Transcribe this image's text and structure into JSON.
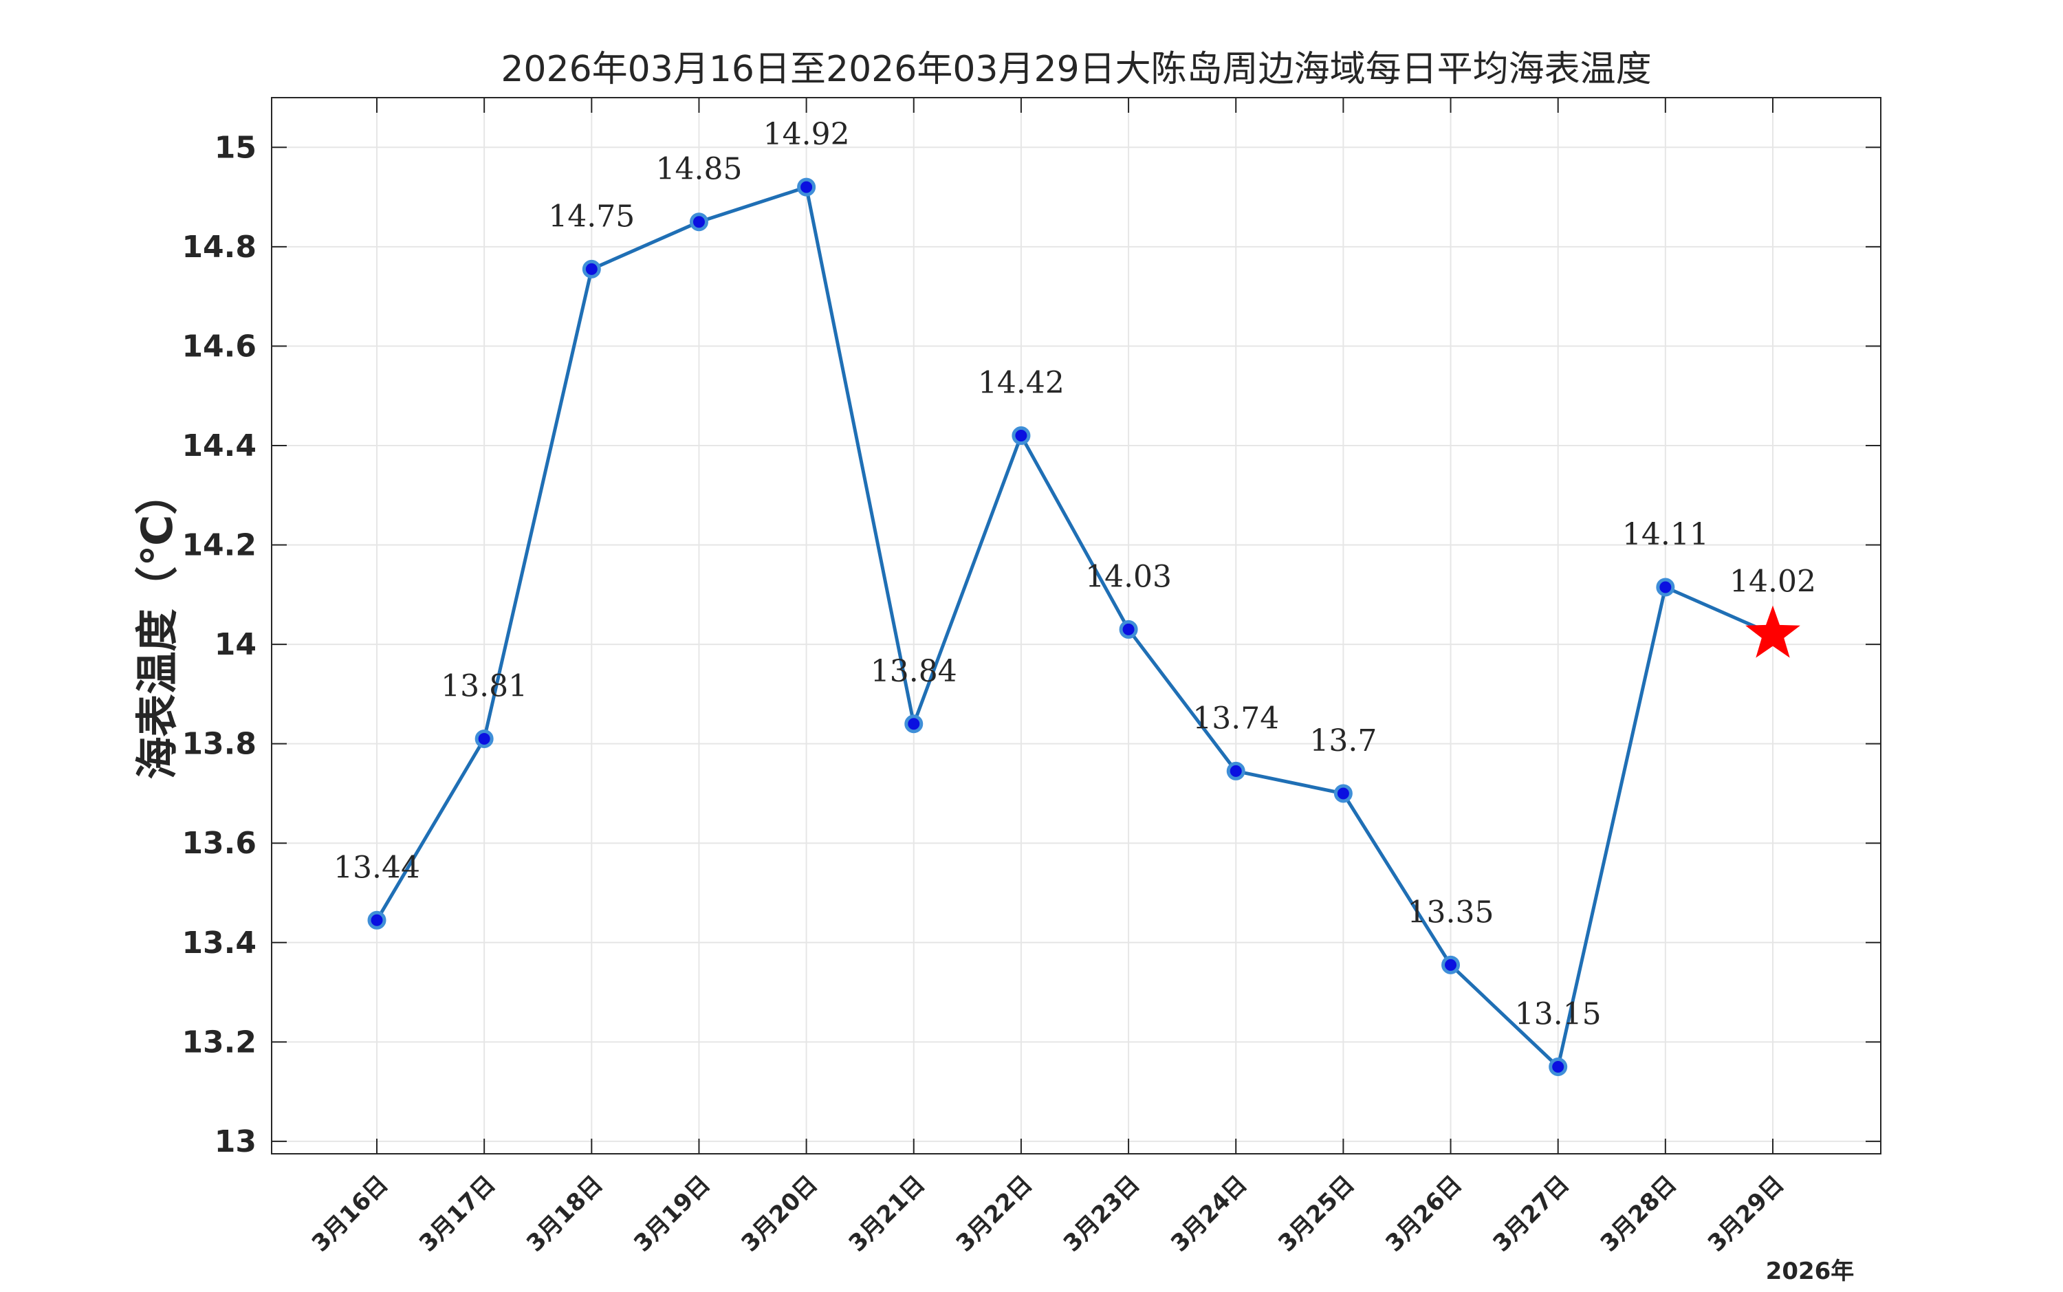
{
  "colors": {
    "line": "#1f6fb5",
    "marker_fill": "#0a10e0",
    "marker_edge": "#3f8fd8",
    "highlight_star": "#ff0000",
    "grid": "#e6e6e6",
    "axis": "#262626"
  },
  "chart_data": {
    "type": "line",
    "title": "2026年03月16日至2026年03月29日大陈岛周边海域每日平均海表温度",
    "xlabel": "",
    "ylabel": "海表温度（℃）",
    "year_label": "2026年",
    "categories": [
      "3月16日",
      "3月17日",
      "3月18日",
      "3月19日",
      "3月20日",
      "3月21日",
      "3月22日",
      "3月23日",
      "3月24日",
      "3月25日",
      "3月26日",
      "3月27日",
      "3月28日",
      "3月29日"
    ],
    "series": [
      {
        "values": [
          13.445,
          13.81,
          14.755,
          14.85,
          14.92,
          13.84,
          14.42,
          14.03,
          13.745,
          13.7,
          13.355,
          13.15,
          14.115,
          14.02
        ],
        "labels": [
          "13.44",
          "13.81",
          "14.75",
          "14.85",
          "14.92",
          "13.84",
          "14.42",
          "14.03",
          "13.74",
          "13.7",
          "13.35",
          "13.15",
          "14.11",
          "14.02"
        ],
        "highlight_last": true
      }
    ],
    "ylim": [
      12.975,
      15.1
    ],
    "yticks": [
      13,
      13.2,
      13.4,
      13.6,
      13.8,
      14,
      14.2,
      14.4,
      14.6,
      14.8,
      15
    ],
    "ytick_labels": [
      "13",
      "13.2",
      "13.4",
      "13.6",
      "13.8",
      "14",
      "14.2",
      "14.4",
      "14.6",
      "14.8",
      "15"
    ],
    "grid": true,
    "legend": "none"
  }
}
